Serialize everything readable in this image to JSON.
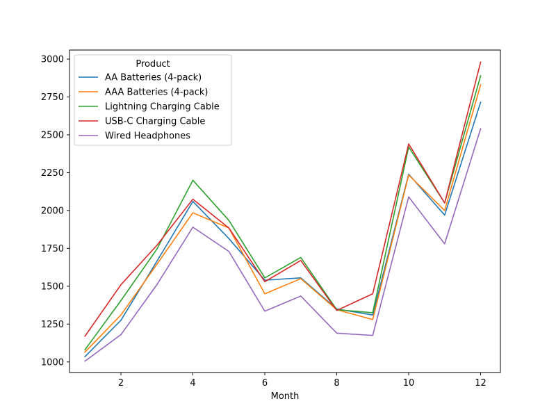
{
  "chart_data": {
    "type": "line",
    "title": "",
    "xlabel": "Month",
    "ylabel": "",
    "xlim": [
      0.57,
      12.55
    ],
    "ylim": [
      930,
      3060
    ],
    "xticks": [
      2,
      4,
      6,
      8,
      10,
      12
    ],
    "yticks": [
      1000,
      1250,
      1500,
      1750,
      2000,
      2250,
      2500,
      2750,
      3000
    ],
    "legend": {
      "title": "Product",
      "position": "top-left"
    },
    "x": [
      1,
      2,
      3,
      4,
      5,
      6,
      7,
      8,
      9,
      10,
      11,
      12
    ],
    "series": [
      {
        "name": "AA Batteries (4-pack)",
        "color": "#1f77b4",
        "values": [
          1035,
          1275,
          1665,
          2060,
          1815,
          1540,
          1555,
          1350,
          1310,
          2240,
          1970,
          2715
        ]
      },
      {
        "name": "AAA Batteries (4-pack)",
        "color": "#ff7f0e",
        "values": [
          1065,
          1310,
          1645,
          1985,
          1885,
          1450,
          1550,
          1345,
          1280,
          2235,
          2000,
          2830
        ]
      },
      {
        "name": "Lightning Charging Cable",
        "color": "#2ca02c",
        "values": [
          1080,
          1405,
          1745,
          2200,
          1935,
          1555,
          1690,
          1345,
          1325,
          2420,
          2050,
          2890
        ]
      },
      {
        "name": "USB-C Charging Cable",
        "color": "#d62728",
        "values": [
          1170,
          1510,
          1770,
          2075,
          1885,
          1530,
          1670,
          1340,
          1450,
          2440,
          2050,
          2980
        ]
      },
      {
        "name": "Wired Headphones",
        "color": "#9467bd",
        "values": [
          1005,
          1180,
          1510,
          1890,
          1730,
          1335,
          1435,
          1190,
          1175,
          2090,
          1780,
          2540
        ]
      }
    ]
  }
}
